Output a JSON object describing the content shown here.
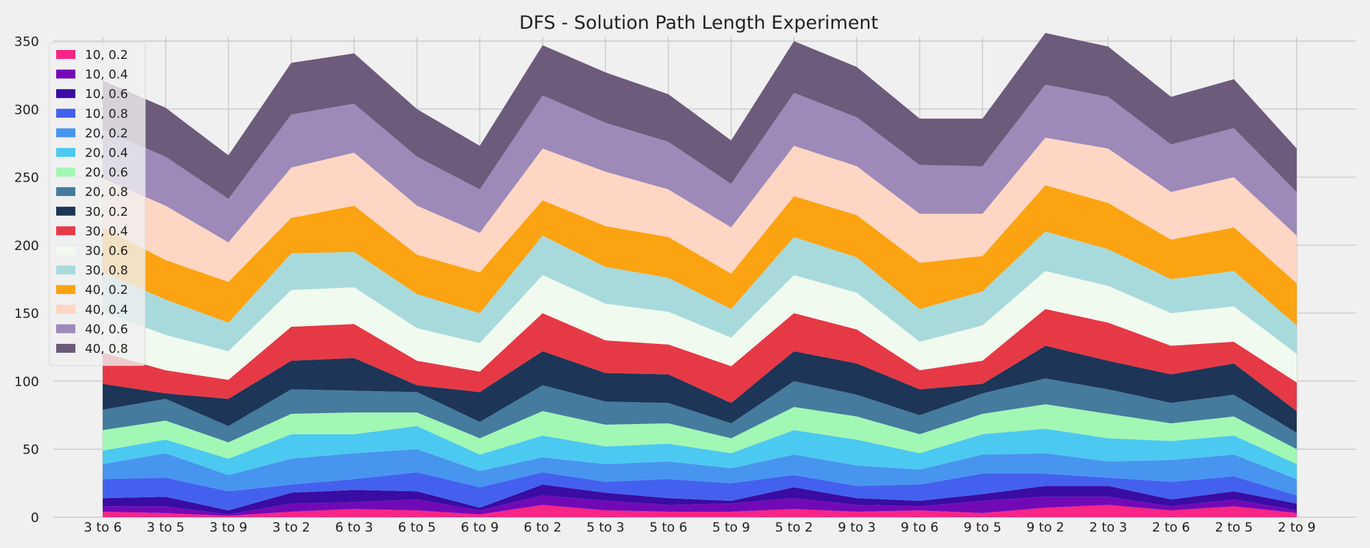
{
  "chart_data": {
    "type": "area",
    "stacked": true,
    "title": "DFS - Solution Path Length Experiment",
    "xlabel": "",
    "ylabel": "",
    "ylim": [
      0,
      350
    ],
    "yticks": [
      0,
      50,
      100,
      150,
      200,
      250,
      300,
      350
    ],
    "grid": true,
    "legend_position": "top-left",
    "categories": [
      "3 to 6",
      "3 to 5",
      "3 to 9",
      "3 to 2",
      "6 to 3",
      "6 to 5",
      "6 to 9",
      "6 to 2",
      "5 to 3",
      "5 to 6",
      "5 to 9",
      "5 to 2",
      "9 to 3",
      "9 to 6",
      "9 to 5",
      "9 to 2",
      "2 to 3",
      "2 to 6",
      "2 to 5",
      "2 to 9"
    ],
    "series": [
      {
        "name": "10, 0.2",
        "color": "#f72585",
        "values": [
          4,
          3,
          1,
          4,
          6,
          5,
          2,
          9,
          5,
          4,
          4,
          6,
          4,
          5,
          3,
          7,
          9,
          5,
          8,
          3
        ]
      },
      {
        "name": "10, 0.4",
        "color": "#7209b7",
        "values": [
          4,
          5,
          1,
          6,
          5,
          8,
          3,
          7,
          7,
          5,
          6,
          8,
          5,
          3,
          9,
          8,
          6,
          3,
          5,
          2
        ]
      },
      {
        "name": "10, 0.6",
        "color": "#3a0ca3",
        "values": [
          6,
          7,
          3,
          8,
          9,
          6,
          2,
          8,
          6,
          5,
          2,
          8,
          5,
          4,
          5,
          8,
          8,
          5,
          6,
          5
        ]
      },
      {
        "name": "10, 0.8",
        "color": "#4361ee",
        "values": [
          14,
          14,
          14,
          6,
          8,
          14,
          15,
          9,
          8,
          14,
          13,
          9,
          9,
          12,
          15,
          9,
          6,
          13,
          11,
          6
        ]
      },
      {
        "name": "20, 0.2",
        "color": "#4895ef",
        "values": [
          11,
          18,
          12,
          19,
          19,
          17,
          12,
          11,
          13,
          13,
          11,
          15,
          15,
          11,
          14,
          15,
          12,
          16,
          16,
          12
        ]
      },
      {
        "name": "20, 0.4",
        "color": "#4cc9f0",
        "values": [
          10,
          10,
          12,
          18,
          14,
          17,
          12,
          16,
          13,
          13,
          11,
          18,
          19,
          12,
          15,
          18,
          17,
          14,
          14,
          11
        ]
      },
      {
        "name": "20, 0.6",
        "color": "#a1f7b4",
        "values": [
          15,
          14,
          12,
          15,
          16,
          10,
          12,
          18,
          16,
          15,
          11,
          17,
          17,
          14,
          15,
          18,
          18,
          13,
          14,
          11
        ]
      },
      {
        "name": "20, 0.8",
        "color": "#457b9d",
        "values": [
          15,
          16,
          12,
          18,
          16,
          15,
          12,
          19,
          17,
          15,
          11,
          19,
          16,
          14,
          15,
          19,
          18,
          15,
          16,
          12
        ]
      },
      {
        "name": "30, 0.2",
        "color": "#1d3557",
        "values": [
          19,
          4,
          20,
          21,
          24,
          5,
          22,
          25,
          21,
          21,
          15,
          22,
          23,
          19,
          7,
          24,
          21,
          21,
          23,
          16
        ]
      },
      {
        "name": "30, 0.4",
        "color": "#e63946",
        "values": [
          23,
          17,
          14,
          25,
          25,
          18,
          15,
          28,
          24,
          22,
          27,
          28,
          25,
          14,
          17,
          27,
          28,
          21,
          16,
          21
        ]
      },
      {
        "name": "30, 0.6",
        "color": "#f1faee",
        "values": [
          30,
          26,
          21,
          27,
          27,
          24,
          21,
          28,
          27,
          24,
          21,
          28,
          27,
          21,
          26,
          28,
          27,
          24,
          26,
          21
        ]
      },
      {
        "name": "30, 0.8",
        "color": "#a8dadc",
        "values": [
          29,
          26,
          21,
          27,
          26,
          25,
          22,
          29,
          27,
          25,
          21,
          28,
          26,
          24,
          25,
          29,
          27,
          25,
          26,
          21
        ]
      },
      {
        "name": "40, 0.2",
        "color": "#fca311",
        "values": [
          33,
          29,
          30,
          26,
          34,
          29,
          30,
          26,
          30,
          30,
          26,
          30,
          31,
          34,
          26,
          34,
          34,
          29,
          32,
          31
        ]
      },
      {
        "name": "40, 0.4",
        "color": "#ffd6c3",
        "values": [
          36,
          40,
          29,
          37,
          39,
          36,
          29,
          38,
          40,
          35,
          34,
          37,
          36,
          36,
          31,
          35,
          40,
          35,
          37,
          35
        ]
      },
      {
        "name": "40, 0.6",
        "color": "#9d8ab9",
        "values": [
          36,
          36,
          32,
          39,
          36,
          36,
          32,
          39,
          36,
          35,
          32,
          39,
          36,
          36,
          35,
          39,
          38,
          35,
          36,
          32
        ]
      },
      {
        "name": "40, 0.8",
        "color": "#6d5b7b",
        "values": [
          36,
          36,
          32,
          38,
          37,
          35,
          32,
          37,
          37,
          35,
          32,
          38,
          37,
          34,
          35,
          38,
          37,
          35,
          36,
          32
        ]
      }
    ]
  }
}
